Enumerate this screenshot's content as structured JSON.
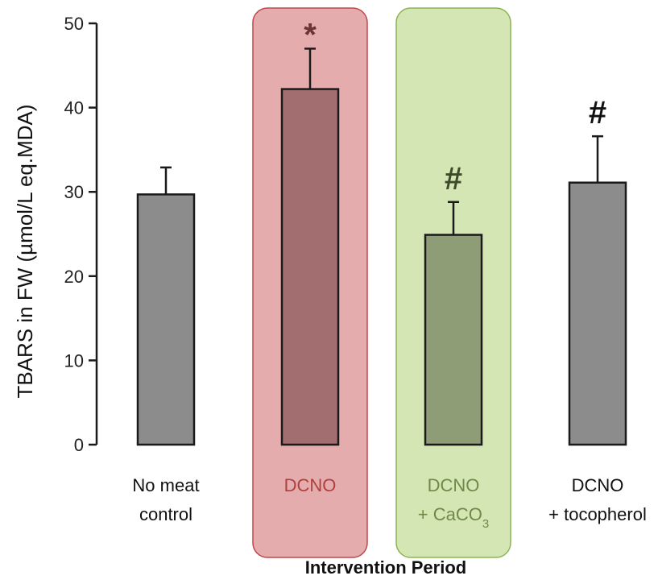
{
  "chart_data": {
    "type": "bar",
    "categories": [
      {
        "line1": "No meat",
        "line2": "control",
        "sub": ""
      },
      {
        "line1": "DCNO",
        "line2": "",
        "sub": ""
      },
      {
        "line1": "DCNO",
        "line2": "+ CaCO",
        "sub": "3"
      },
      {
        "line1": "DCNO",
        "line2": "+ tocopherol",
        "sub": ""
      }
    ],
    "values": [
      29.7,
      42.2,
      24.9,
      31.1
    ],
    "errors": [
      3.2,
      4.8,
      3.9,
      5.5
    ],
    "markers": [
      "",
      "*",
      "#",
      "#"
    ],
    "ylabel": "TBARS in FW (µmol/L eq.MDA)",
    "xlabel": "Intervention Period",
    "ylim": [
      0,
      50
    ],
    "yticks": [
      0,
      10,
      20,
      30,
      40,
      50
    ],
    "grid": false,
    "colors": {
      "bars": [
        "#8c8c8c",
        "#a36e70",
        "#8f9d76",
        "#8c8c8c"
      ],
      "labels": [
        "#111111",
        "#b0403e",
        "#6e8a48",
        "#111111"
      ],
      "markers": [
        "#333333",
        "#6b3535",
        "#3d4a2a",
        "#111111"
      ],
      "highlights": [
        null,
        {
          "fill": "#e5acad",
          "stroke": "#c0464a"
        },
        {
          "fill": "#d5e6b5",
          "stroke": "#8cb353"
        },
        null
      ]
    }
  }
}
